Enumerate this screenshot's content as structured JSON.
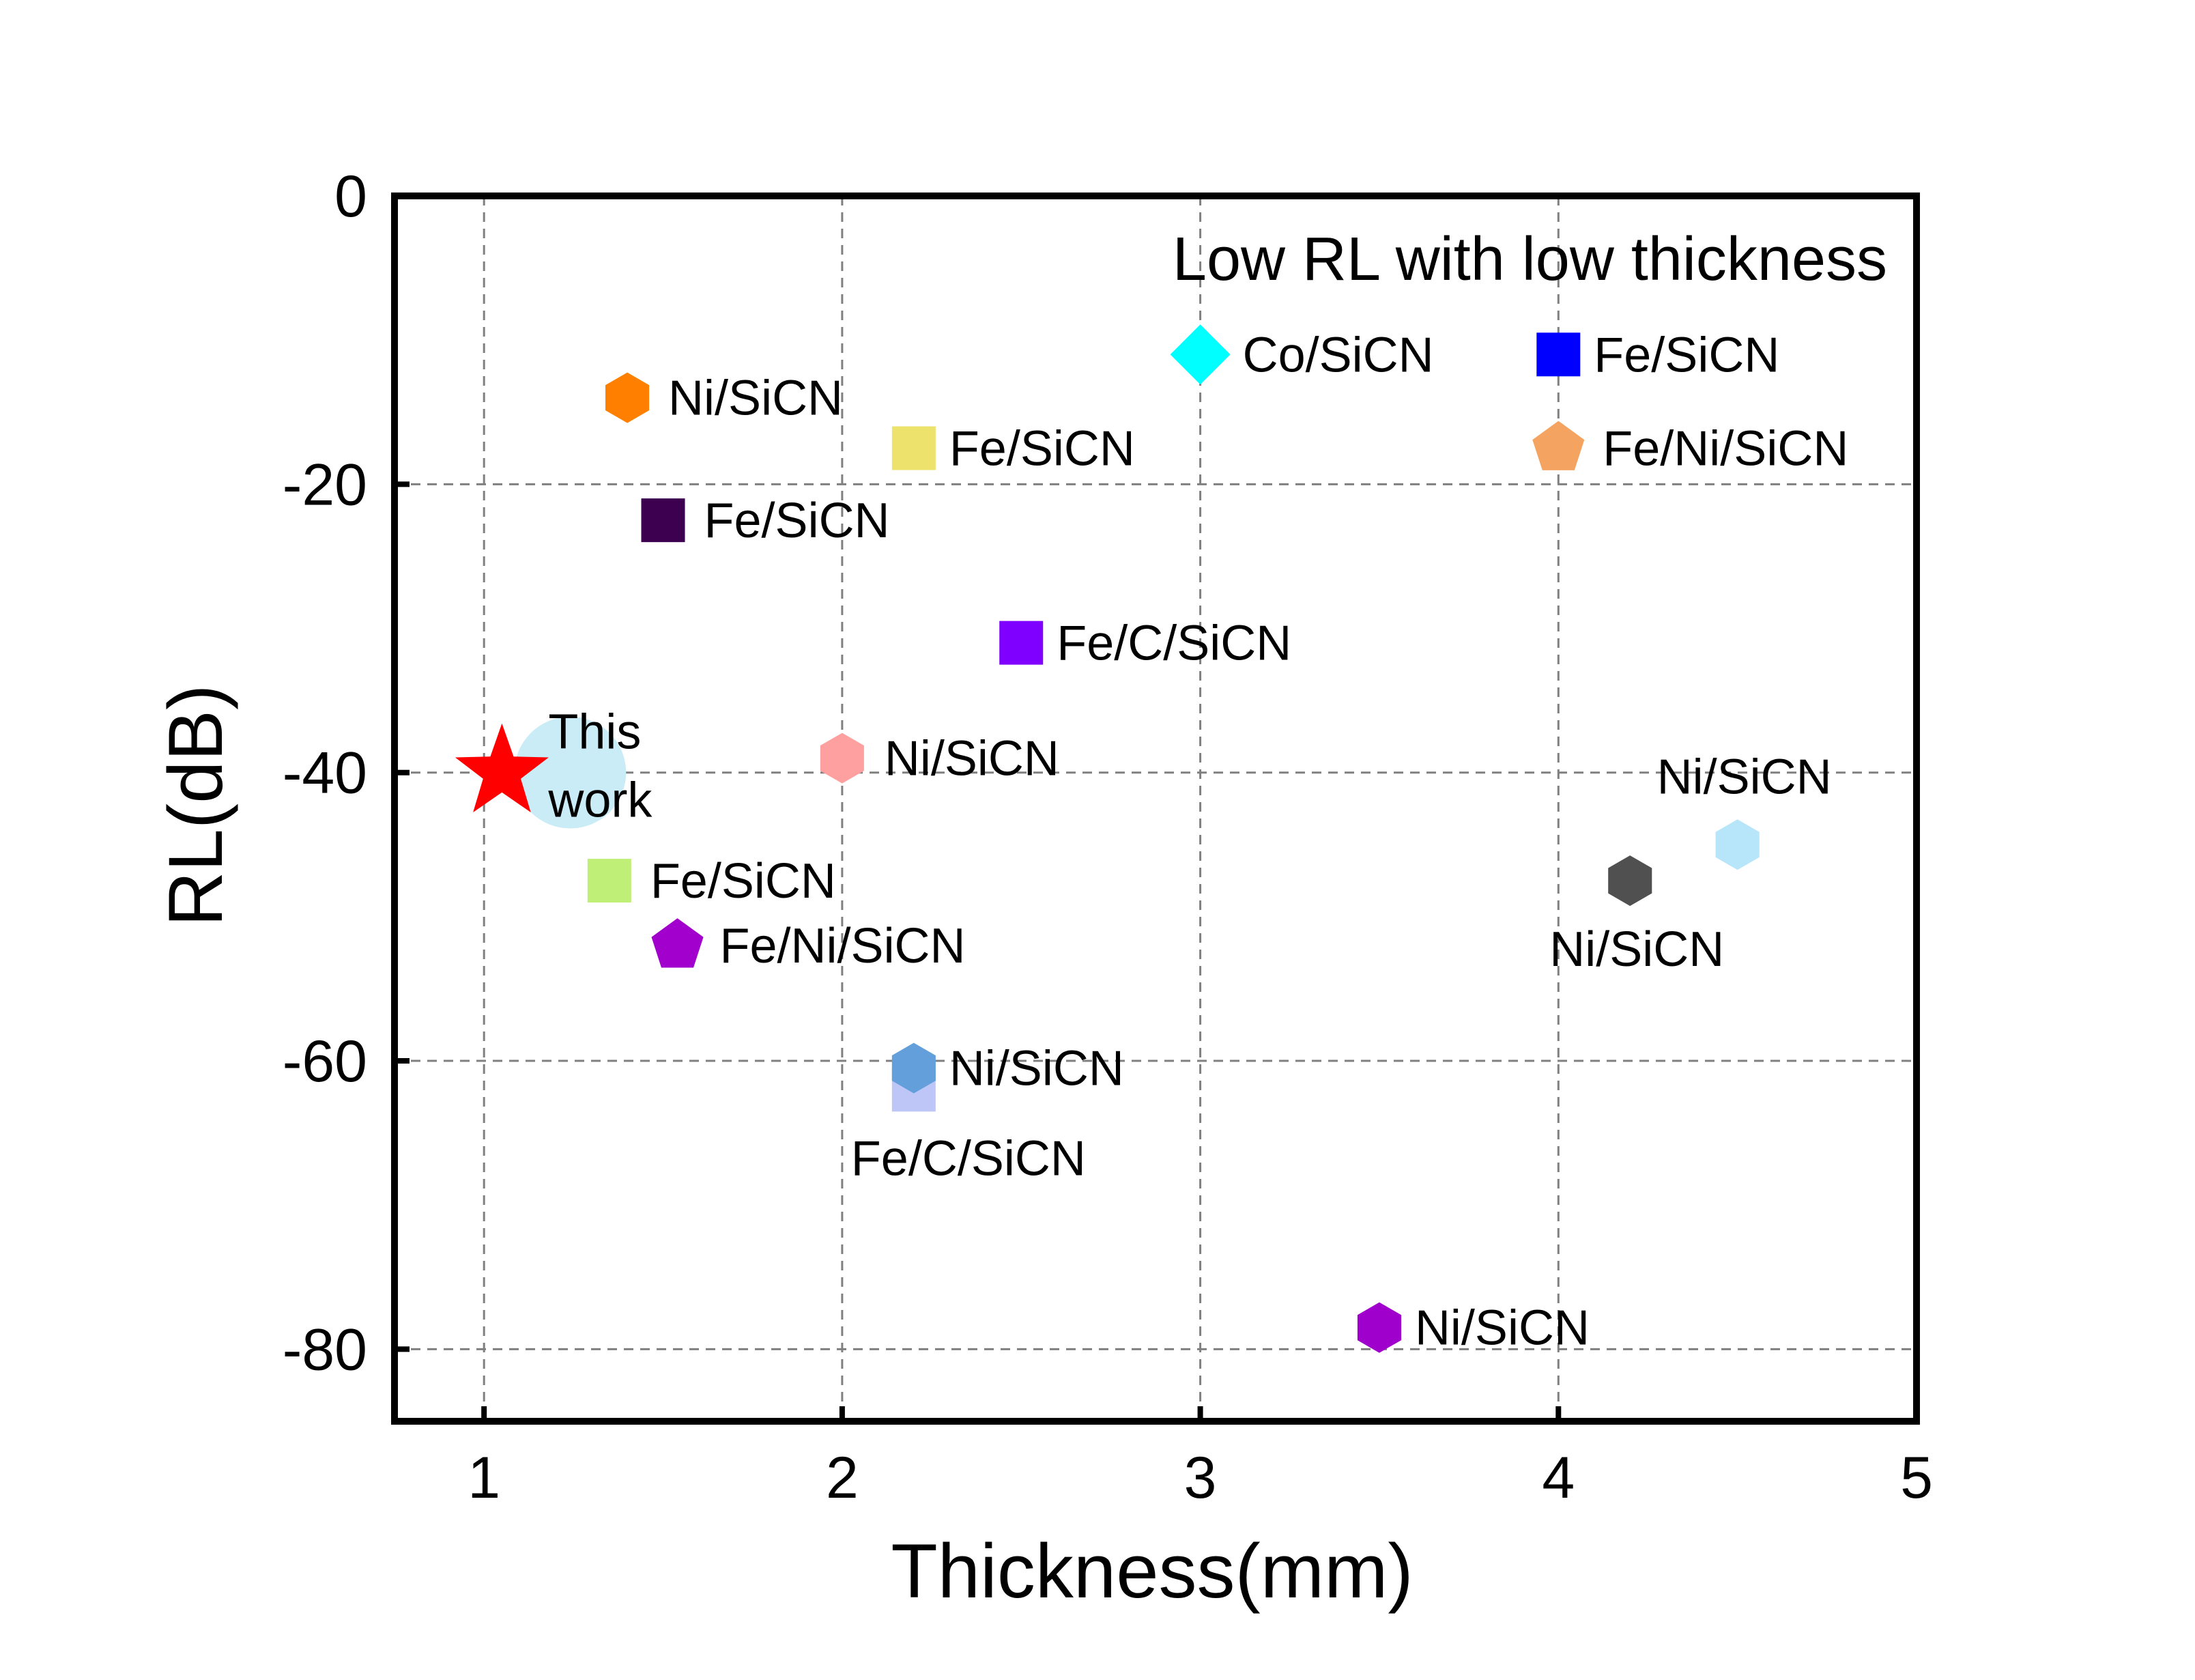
{
  "chart_data": {
    "type": "scatter",
    "title": "",
    "xlabel": "Thickness(mm)",
    "ylabel": "RL(dB)",
    "xlim": [
      0.75,
      5
    ],
    "ylim": [
      -85,
      0
    ],
    "xticks": [
      1,
      2,
      3,
      4,
      5
    ],
    "yticks": [
      0,
      -20,
      -40,
      -60,
      -80
    ],
    "x_tick_labels": [
      "1",
      "2",
      "3",
      "4",
      "5"
    ],
    "y_tick_labels": [
      "0",
      "-20",
      "-40",
      "-60",
      "-80"
    ],
    "grid": true,
    "annotation": {
      "text": "Low RL with low thickness",
      "color": "#ff3fa4"
    },
    "points": [
      {
        "x": 1.05,
        "y": -40,
        "label": "This work",
        "label_lines": [
          "This",
          "work"
        ],
        "marker": "star",
        "color": "#ff0000",
        "highlight_color": "#c9ecf7",
        "highlight_radius": 0.3
      },
      {
        "x": 1.4,
        "y": -14,
        "label": "Ni/SiCN",
        "marker": "hexagon",
        "color": "#ff8000"
      },
      {
        "x": 1.5,
        "y": -22.5,
        "label": "Fe/SiCN",
        "marker": "square",
        "color": "#3d0050"
      },
      {
        "x": 1.35,
        "y": -47.5,
        "label": "Fe/SiCN",
        "marker": "square",
        "color": "#bfef77"
      },
      {
        "x": 1.54,
        "y": -52,
        "label": "Fe/Ni/SiCN",
        "marker": "pentagon",
        "color": "#a200cc"
      },
      {
        "x": 2.2,
        "y": -17.5,
        "label": "Fe/SiCN",
        "marker": "square",
        "color": "#ede26b"
      },
      {
        "x": 2.5,
        "y": -31,
        "label": "Fe/C/SiCN",
        "marker": "square",
        "color": "#7f00ff"
      },
      {
        "x": 2.0,
        "y": -39,
        "label": "Ni/SiCN",
        "marker": "hexagon",
        "color": "#ffa0a0"
      },
      {
        "x": 2.2,
        "y": -62,
        "label": "Fe/C/SiCN",
        "marker": "square",
        "color": "#bdc6f7"
      },
      {
        "x": 2.2,
        "y": -60.5,
        "label": "Ni/SiCN",
        "marker": "hexagon",
        "color": "#639fdb"
      },
      {
        "x": 3.0,
        "y": -11,
        "label": "Co/SiCN",
        "marker": "diamond",
        "color": "#00ffff"
      },
      {
        "x": 3.5,
        "y": -78.5,
        "label": "Ni/SiCN",
        "marker": "hexagon",
        "color": "#a000cc"
      },
      {
        "x": 4.0,
        "y": -11,
        "label": "Fe/SiCN",
        "marker": "square",
        "color": "#0000ff"
      },
      {
        "x": 4.0,
        "y": -17.5,
        "label": "Fe/Ni/SiCN",
        "marker": "pentagon",
        "color": "#f4a460"
      },
      {
        "x": 4.2,
        "y": -47.5,
        "label": "Ni/SiCN",
        "marker": "hexagon",
        "color": "#505050"
      },
      {
        "x": 4.5,
        "y": -45,
        "label": "Ni/SiCN",
        "marker": "hexagon",
        "color": "#b7e6fb"
      }
    ]
  }
}
